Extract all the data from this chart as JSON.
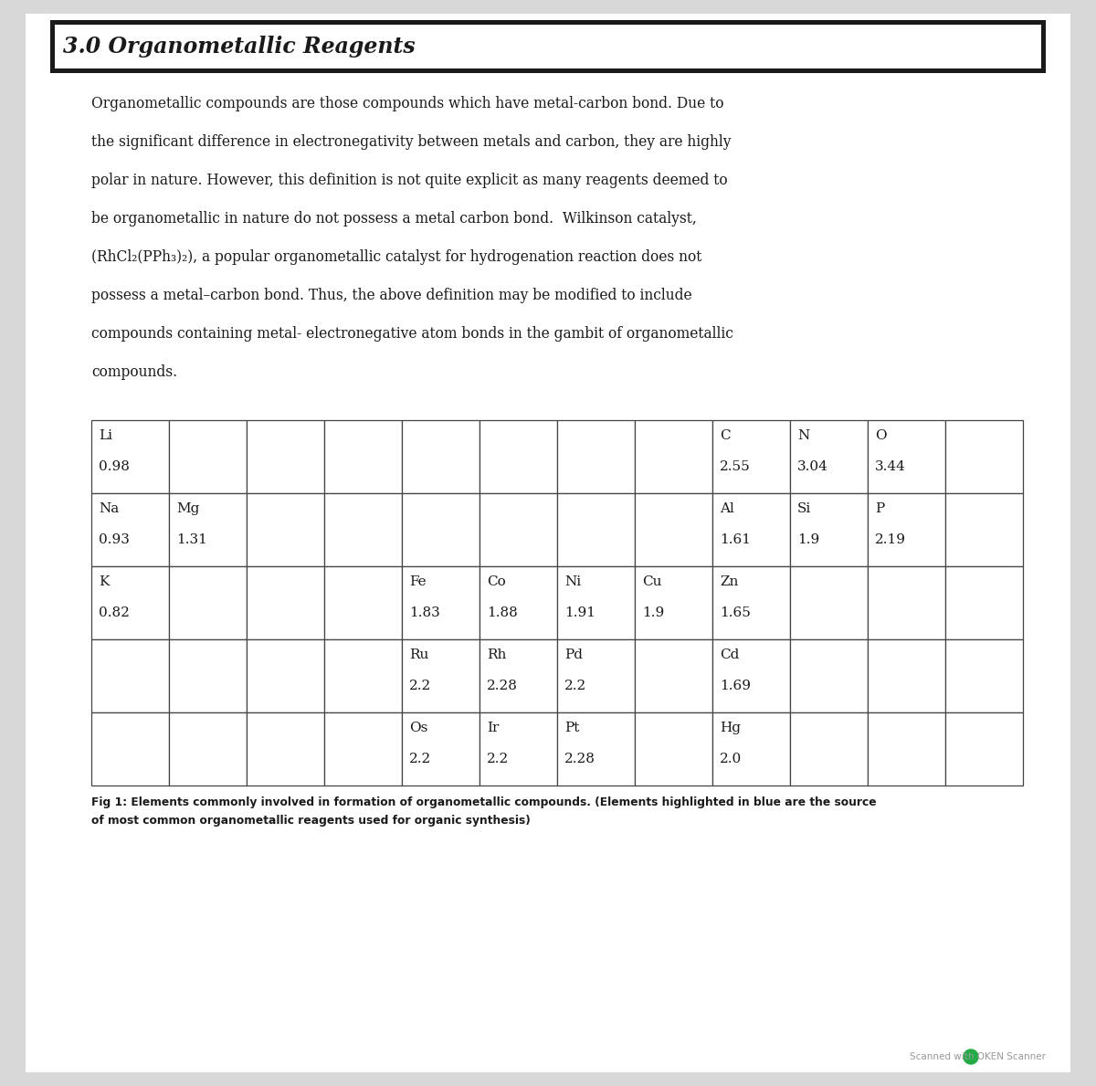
{
  "title": "3.0 Organometallic Reagents",
  "body_text": [
    "Organometallic compounds are those compounds which have metal-carbon bond. Due to",
    "the significant difference in electronegativity between metals and carbon, they are highly",
    "polar in nature. However, this definition is not quite explicit as many reagents deemed to",
    "be organometallic in nature do not possess a metal carbon bond.  Wilkinson catalyst,",
    "(RhCl₂(PPh₃)₂), a popular organometallic catalyst for hydrogenation reaction does not",
    "possess a metal–carbon bond. Thus, the above definition may be modified to include",
    "compounds containing metal- electronegative atom bonds in the gambit of organometallic",
    "compounds."
  ],
  "fig_caption_line1": "Fig 1: Elements commonly involved in formation of organometallic compounds. (Elements highlighted in blue are the source",
  "fig_caption_line2": "of most common organometallic reagents used for organic synthesis)",
  "table": {
    "num_cols": 12,
    "num_rows": 5,
    "cells": [
      {
        "row": 0,
        "col": 0,
        "symbol": "Li",
        "value": "0.98"
      },
      {
        "row": 0,
        "col": 8,
        "symbol": "C",
        "value": "2.55"
      },
      {
        "row": 0,
        "col": 9,
        "symbol": "N",
        "value": "3.04"
      },
      {
        "row": 0,
        "col": 10,
        "symbol": "O",
        "value": "3.44"
      },
      {
        "row": 1,
        "col": 0,
        "symbol": "Na",
        "value": "0.93"
      },
      {
        "row": 1,
        "col": 1,
        "symbol": "Mg",
        "value": "1.31"
      },
      {
        "row": 1,
        "col": 8,
        "symbol": "Al",
        "value": "1.61"
      },
      {
        "row": 1,
        "col": 9,
        "symbol": "Si",
        "value": "1.9"
      },
      {
        "row": 1,
        "col": 10,
        "symbol": "P",
        "value": "2.19"
      },
      {
        "row": 2,
        "col": 0,
        "symbol": "K",
        "value": "0.82"
      },
      {
        "row": 2,
        "col": 4,
        "symbol": "Fe",
        "value": "1.83"
      },
      {
        "row": 2,
        "col": 5,
        "symbol": "Co",
        "value": "1.88"
      },
      {
        "row": 2,
        "col": 6,
        "symbol": "Ni",
        "value": "1.91"
      },
      {
        "row": 2,
        "col": 7,
        "symbol": "Cu",
        "value": "1.9"
      },
      {
        "row": 2,
        "col": 8,
        "symbol": "Zn",
        "value": "1.65"
      },
      {
        "row": 3,
        "col": 4,
        "symbol": "Ru",
        "value": "2.2"
      },
      {
        "row": 3,
        "col": 5,
        "symbol": "Rh",
        "value": "2.28"
      },
      {
        "row": 3,
        "col": 6,
        "symbol": "Pd",
        "value": "2.2"
      },
      {
        "row": 3,
        "col": 8,
        "symbol": "Cd",
        "value": "1.69"
      },
      {
        "row": 4,
        "col": 4,
        "symbol": "Os",
        "value": "2.2"
      },
      {
        "row": 4,
        "col": 5,
        "symbol": "Ir",
        "value": "2.2"
      },
      {
        "row": 4,
        "col": 6,
        "symbol": "Pt",
        "value": "2.28"
      },
      {
        "row": 4,
        "col": 8,
        "symbol": "Hg",
        "value": "2.0"
      }
    ]
  },
  "page_bg": "#d8d8d8",
  "content_bg": "#ffffff",
  "title_bg": "#ffffff",
  "title_outer_color": "#1a1a1a",
  "title_inner_color": "#1a1a1a",
  "font_color": "#1a1a1a",
  "grid_line_color": "#444444",
  "watermark_color": "#999999",
  "scanner_green": "#22aa44"
}
